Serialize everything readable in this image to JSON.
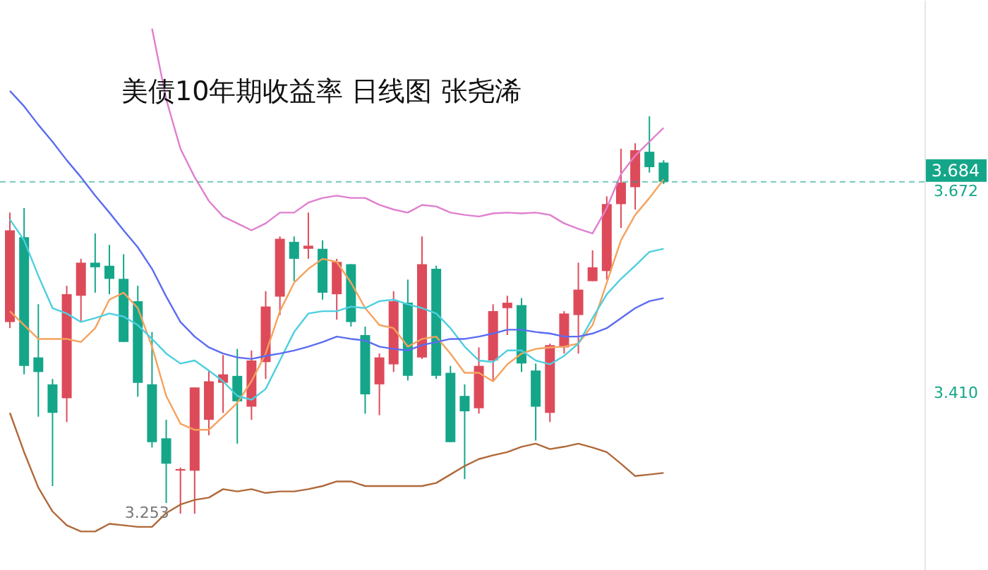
{
  "chart_data": {
    "type": "candlestick",
    "title": "美债10年期收益率 日线图 张尧浠",
    "categories": [
      null,
      null,
      null,
      null,
      null,
      null,
      null,
      null,
      null,
      null,
      null,
      null,
      null,
      null,
      null,
      null,
      null,
      null,
      null,
      null,
      null,
      null,
      null,
      null,
      null,
      null,
      null,
      null,
      null,
      null,
      null,
      null,
      null,
      null,
      null,
      null,
      null,
      null,
      null,
      null,
      null,
      null,
      null,
      null,
      null,
      null,
      null
    ],
    "ohlc": [
      [
        3.502,
        3.644,
        3.494,
        3.621
      ],
      [
        3.612,
        3.65,
        3.434,
        3.445
      ],
      [
        3.456,
        3.525,
        3.379,
        3.437
      ],
      [
        3.421,
        3.428,
        3.289,
        3.384
      ],
      [
        3.403,
        3.549,
        3.372,
        3.538
      ],
      [
        3.536,
        3.584,
        3.503,
        3.579
      ],
      [
        3.579,
        3.617,
        3.54,
        3.573
      ],
      [
        3.575,
        3.602,
        3.538,
        3.558
      ],
      [
        3.558,
        3.59,
        3.476,
        3.476
      ],
      [
        3.529,
        3.549,
        3.405,
        3.423
      ],
      [
        3.421,
        3.489,
        3.339,
        3.346
      ],
      [
        3.351,
        3.375,
        3.267,
        3.318
      ],
      [
        3.309,
        3.313,
        3.253,
        3.311
      ],
      [
        3.309,
        3.417,
        3.253,
        3.417
      ],
      [
        3.375,
        3.439,
        3.355,
        3.425
      ],
      [
        3.423,
        3.459,
        3.384,
        3.434
      ],
      [
        3.432,
        3.467,
        3.344,
        3.399
      ],
      [
        3.392,
        3.465,
        3.375,
        3.452
      ],
      [
        3.45,
        3.542,
        3.428,
        3.522
      ],
      [
        3.535,
        3.613,
        3.511,
        3.61
      ],
      [
        3.606,
        3.613,
        3.555,
        3.584
      ],
      [
        3.597,
        3.644,
        3.584,
        3.601
      ],
      [
        3.597,
        3.608,
        3.531,
        3.54
      ],
      [
        3.538,
        3.584,
        3.505,
        3.58
      ],
      [
        3.577,
        3.577,
        3.496,
        3.502
      ],
      [
        3.485,
        3.496,
        3.383,
        3.408
      ],
      [
        3.421,
        3.461,
        3.381,
        3.456
      ],
      [
        3.447,
        3.542,
        3.437,
        3.529
      ],
      [
        3.527,
        3.557,
        3.426,
        3.432
      ],
      [
        3.456,
        3.613,
        3.454,
        3.577
      ],
      [
        3.571,
        3.575,
        3.428,
        3.432
      ],
      [
        3.436,
        3.445,
        3.346,
        3.346
      ],
      [
        3.406,
        3.421,
        3.298,
        3.386
      ],
      [
        3.39,
        3.469,
        3.383,
        3.445
      ],
      [
        3.452,
        3.525,
        3.426,
        3.516
      ],
      [
        3.52,
        3.536,
        3.485,
        3.527
      ],
      [
        3.524,
        3.533,
        3.437,
        3.448
      ],
      [
        3.439,
        3.448,
        3.348,
        3.392
      ],
      [
        3.384,
        3.474,
        3.372,
        3.472
      ],
      [
        3.469,
        3.516,
        3.461,
        3.513
      ],
      [
        3.511,
        3.579,
        3.461,
        3.544
      ],
      [
        3.555,
        3.595,
        3.555,
        3.573
      ],
      [
        3.568,
        3.665,
        3.557,
        3.655
      ],
      [
        3.655,
        3.727,
        3.624,
        3.683
      ],
      [
        3.677,
        3.734,
        3.648,
        3.725
      ],
      [
        3.723,
        3.769,
        3.696,
        3.703
      ],
      [
        3.709,
        3.712,
        3.681,
        3.684
      ]
    ],
    "colors": [
      "#dd4b5a",
      "#15a68a",
      "#15a68a",
      "#15a68a",
      "#dd4b5a",
      "#dd4b5a",
      "#15a68a",
      "#15a68a",
      "#15a68a",
      "#15a68a",
      "#15a68a",
      "#15a68a",
      "#dd4b5a",
      "#dd4b5a",
      "#dd4b5a",
      "#dd4b5a",
      "#15a68a",
      "#dd4b5a",
      "#dd4b5a",
      "#dd4b5a",
      "#15a68a",
      "#dd4b5a",
      "#15a68a",
      "#dd4b5a",
      "#15a68a",
      "#15a68a",
      "#dd4b5a",
      "#dd4b5a",
      "#15a68a",
      "#dd4b5a",
      "#15a68a",
      "#15a68a",
      "#15a68a",
      "#dd4b5a",
      "#dd4b5a",
      "#dd4b5a",
      "#15a68a",
      "#15a68a",
      "#dd4b5a",
      "#dd4b5a",
      "#dd4b5a",
      "#dd4b5a",
      "#dd4b5a",
      "#dd4b5a",
      "#dd4b5a",
      "#15a68a",
      "#15a68a"
    ],
    "series": [
      {
        "type": "line",
        "color": "#f5a25d",
        "values": [
          3.516,
          3.498,
          3.48,
          3.48,
          3.48,
          3.476,
          3.494,
          3.531,
          3.54,
          3.52,
          3.47,
          3.406,
          3.37,
          3.362,
          3.362,
          3.379,
          3.397,
          3.425,
          3.461,
          3.516,
          3.553,
          3.571,
          3.584,
          3.58,
          3.553,
          3.52,
          3.498,
          3.494,
          3.47,
          3.48,
          3.483,
          3.461,
          3.436,
          3.436,
          3.425,
          3.447,
          3.461,
          3.467,
          3.469,
          3.47,
          3.474,
          3.498,
          3.553,
          3.608,
          3.641,
          3.663,
          3.687
        ]
      },
      {
        "type": "line",
        "color": "#4dcfe0",
        "values": [
          3.635,
          3.608,
          3.562,
          3.52,
          3.513,
          3.502,
          3.507,
          3.513,
          3.509,
          3.498,
          3.48,
          3.461,
          3.448,
          3.452,
          3.439,
          3.425,
          3.406,
          3.401,
          3.415,
          3.452,
          3.489,
          3.513,
          3.516,
          3.516,
          3.522,
          3.52,
          3.529,
          3.531,
          3.525,
          3.52,
          3.513,
          3.494,
          3.47,
          3.452,
          3.45,
          3.465,
          3.465,
          3.452,
          3.447,
          3.458,
          3.474,
          3.507,
          3.538,
          3.558,
          3.575,
          3.593,
          3.597
        ]
      },
      {
        "type": "line",
        "color": "#5b6cf0",
        "values": [
          3.802,
          3.782,
          3.758,
          3.736,
          3.712,
          3.69,
          3.666,
          3.644,
          3.621,
          3.599,
          3.571,
          3.535,
          3.502,
          3.483,
          3.469,
          3.461,
          3.456,
          3.454,
          3.458,
          3.461,
          3.465,
          3.47,
          3.476,
          3.483,
          3.48,
          3.478,
          3.47,
          3.467,
          3.465,
          3.472,
          3.476,
          3.48,
          3.48,
          3.483,
          3.487,
          3.492,
          3.492,
          3.489,
          3.487,
          3.483,
          3.483,
          3.487,
          3.494,
          3.507,
          3.52,
          3.529,
          3.533
        ]
      },
      {
        "type": "line",
        "color": "#e07fcf",
        "values": [
          null,
          null,
          null,
          null,
          null,
          null,
          null,
          null,
          null,
          null,
          3.883,
          3.791,
          3.727,
          3.69,
          3.659,
          3.639,
          3.63,
          3.621,
          3.63,
          3.644,
          3.644,
          3.657,
          3.663,
          3.666,
          3.663,
          3.663,
          3.654,
          3.648,
          3.644,
          3.654,
          3.652,
          3.644,
          3.641,
          3.639,
          3.643,
          3.644,
          3.643,
          3.644,
          3.641,
          3.63,
          3.623,
          3.617,
          3.65,
          3.694,
          3.718,
          3.736,
          3.754
        ]
      },
      {
        "type": "line",
        "color": "#b0693a",
        "values": [
          3.384,
          3.333,
          3.287,
          3.256,
          3.238,
          3.23,
          3.23,
          3.24,
          3.238,
          3.236,
          3.236,
          3.254,
          3.265,
          3.271,
          3.274,
          3.285,
          3.282,
          3.285,
          3.28,
          3.282,
          3.282,
          3.285,
          3.289,
          3.295,
          3.295,
          3.289,
          3.289,
          3.289,
          3.289,
          3.289,
          3.293,
          3.304,
          3.315,
          3.324,
          3.329,
          3.333,
          3.34,
          3.344,
          3.337,
          3.34,
          3.344,
          3.339,
          3.333,
          3.318,
          3.302,
          3.304,
          3.306
        ]
      }
    ],
    "ylim": [
      3.18,
      3.92
    ],
    "yticks": [
      {
        "value": 3.41,
        "label": "3.410"
      },
      {
        "value": 3.672,
        "label": "3.672"
      }
    ],
    "ref_lines": [
      {
        "axis": "y",
        "value": 3.684,
        "label": "3.684",
        "color": "#15a68a",
        "line_style": "dashed"
      }
    ],
    "annotations": [
      "3.253"
    ],
    "tick_labels": "y",
    "grid": false
  }
}
